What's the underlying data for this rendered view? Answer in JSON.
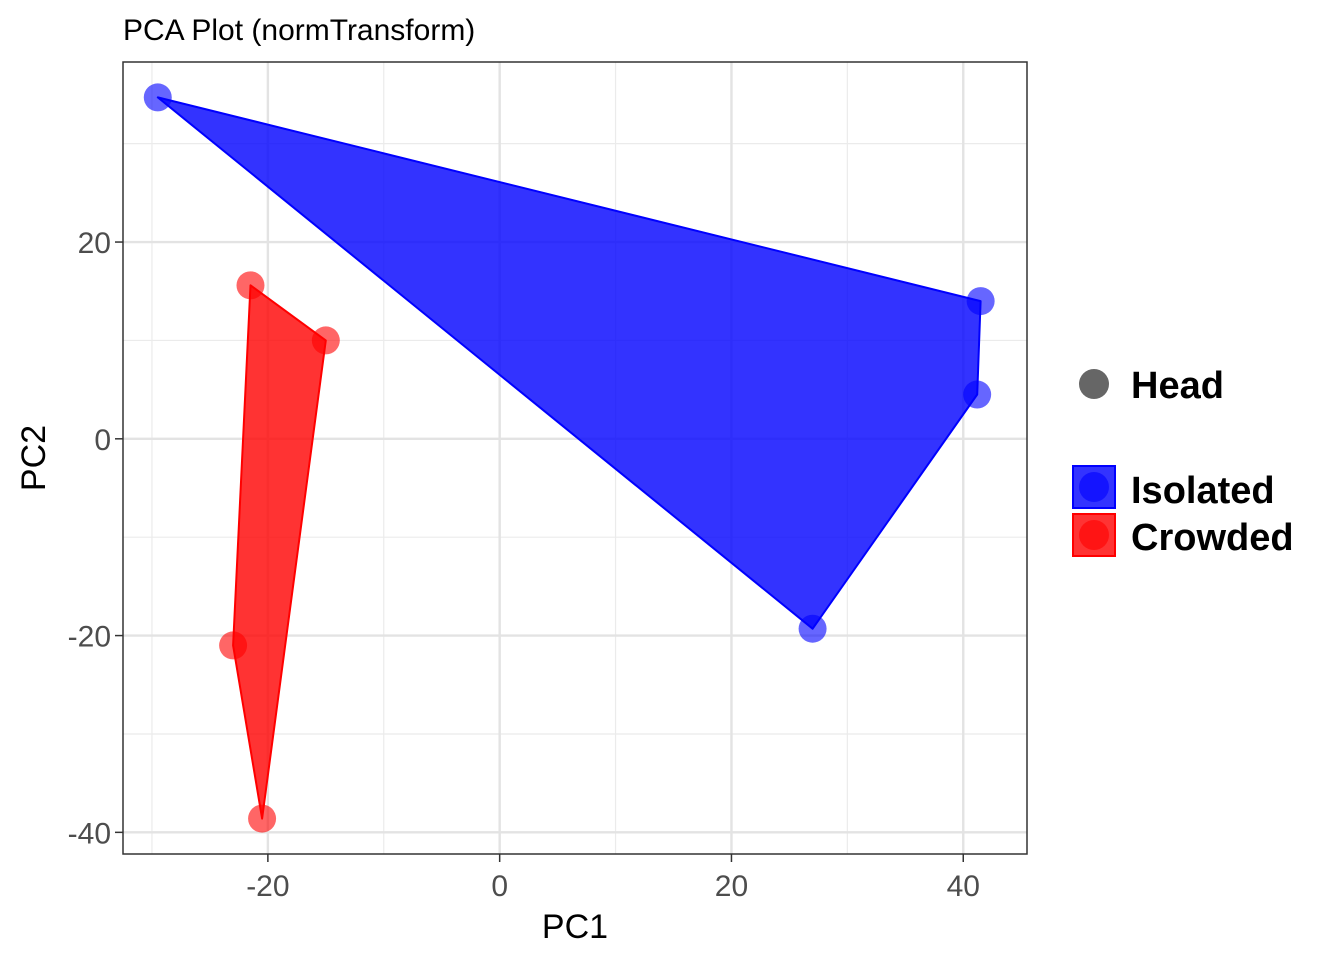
{
  "chart_data": {
    "type": "scatter",
    "title": "PCA Plot (normTransform)",
    "xlabel": "PC1",
    "ylabel": "PC2",
    "xlim": [
      -32.5,
      45.5
    ],
    "ylim": [
      -42.2,
      38.3
    ],
    "x_ticks": [
      -20,
      0,
      20,
      40
    ],
    "y_ticks": [
      20,
      0,
      -20,
      -40
    ],
    "x_tick_labels": [
      "-20",
      "0",
      "20",
      "40"
    ],
    "y_tick_labels": [
      "20",
      "0",
      "-20",
      "-40"
    ],
    "x_minor_ticks": [
      -30,
      -10,
      10,
      30
    ],
    "y_minor_ticks": [
      30,
      10,
      -10,
      -30
    ],
    "grid": true,
    "hull": true,
    "legend_position": "right",
    "shape_legend": [
      {
        "label": "Head",
        "shape": "circle",
        "color": "#666666"
      }
    ],
    "series": [
      {
        "name": "Isolated",
        "color": "#0000ff",
        "points": [
          {
            "x": -29.5,
            "y": 34.7
          },
          {
            "x": 41.5,
            "y": 14.0
          },
          {
            "x": 41.2,
            "y": 4.5
          },
          {
            "x": 27.0,
            "y": -19.3
          }
        ]
      },
      {
        "name": "Crowded",
        "color": "#ff0000",
        "points": [
          {
            "x": -21.5,
            "y": 15.6
          },
          {
            "x": -15.0,
            "y": 10.0
          },
          {
            "x": -23.0,
            "y": -21.0
          },
          {
            "x": -20.5,
            "y": -38.6
          }
        ]
      }
    ]
  }
}
